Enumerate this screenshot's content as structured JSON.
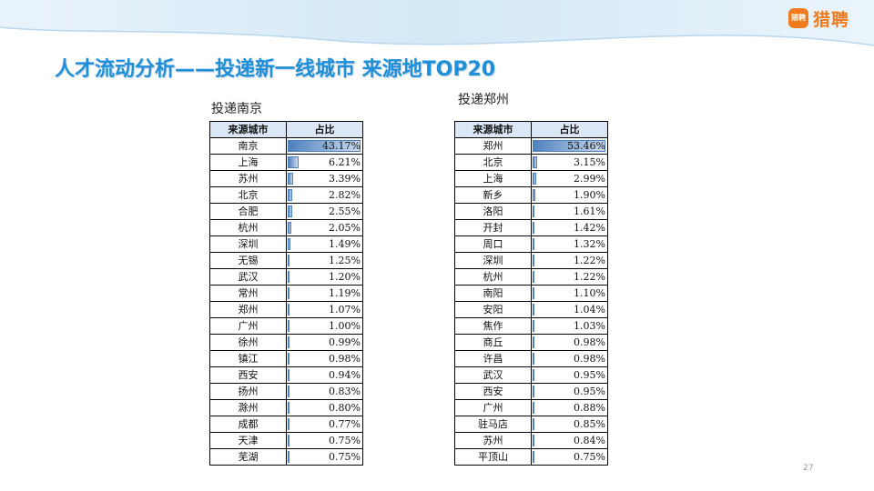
{
  "brand": {
    "badge": "猎聘",
    "name": "猎聘"
  },
  "title": "人才流动分析——投递新一线城市 来源地TOP20",
  "colors": {
    "title": "#1e8fd8",
    "brand": "#f07a1e",
    "bar": "#4f81bd",
    "header_bg": "#dbe7f4"
  },
  "tables": [
    {
      "caption": "投递南京",
      "headers": [
        "来源城市",
        "占比"
      ],
      "rows": [
        {
          "city": "南京",
          "pct": "43.17%",
          "value": 43.17
        },
        {
          "city": "上海",
          "pct": "6.21%",
          "value": 6.21
        },
        {
          "city": "苏州",
          "pct": "3.39%",
          "value": 3.39
        },
        {
          "city": "北京",
          "pct": "2.82%",
          "value": 2.82
        },
        {
          "city": "合肥",
          "pct": "2.55%",
          "value": 2.55
        },
        {
          "city": "杭州",
          "pct": "2.05%",
          "value": 2.05
        },
        {
          "city": "深圳",
          "pct": "1.49%",
          "value": 1.49
        },
        {
          "city": "无锡",
          "pct": "1.25%",
          "value": 1.25
        },
        {
          "city": "武汉",
          "pct": "1.20%",
          "value": 1.2
        },
        {
          "city": "常州",
          "pct": "1.19%",
          "value": 1.19
        },
        {
          "city": "郑州",
          "pct": "1.07%",
          "value": 1.07
        },
        {
          "city": "广州",
          "pct": "1.00%",
          "value": 1.0
        },
        {
          "city": "徐州",
          "pct": "0.99%",
          "value": 0.99
        },
        {
          "city": "镇江",
          "pct": "0.98%",
          "value": 0.98
        },
        {
          "city": "西安",
          "pct": "0.94%",
          "value": 0.94
        },
        {
          "city": "扬州",
          "pct": "0.83%",
          "value": 0.83
        },
        {
          "city": "滁州",
          "pct": "0.80%",
          "value": 0.8
        },
        {
          "city": "成都",
          "pct": "0.77%",
          "value": 0.77
        },
        {
          "city": "天津",
          "pct": "0.75%",
          "value": 0.75
        },
        {
          "city": "芜湖",
          "pct": "0.75%",
          "value": 0.75
        }
      ]
    },
    {
      "caption": "投递郑州",
      "headers": [
        "来源城市",
        "占比"
      ],
      "rows": [
        {
          "city": "郑州",
          "pct": "53.46%",
          "value": 53.46
        },
        {
          "city": "北京",
          "pct": "3.15%",
          "value": 3.15
        },
        {
          "city": "上海",
          "pct": "2.99%",
          "value": 2.99
        },
        {
          "city": "新乡",
          "pct": "1.90%",
          "value": 1.9
        },
        {
          "city": "洛阳",
          "pct": "1.61%",
          "value": 1.61
        },
        {
          "city": "开封",
          "pct": "1.42%",
          "value": 1.42
        },
        {
          "city": "周口",
          "pct": "1.32%",
          "value": 1.32
        },
        {
          "city": "深圳",
          "pct": "1.22%",
          "value": 1.22
        },
        {
          "city": "杭州",
          "pct": "1.22%",
          "value": 1.22
        },
        {
          "city": "南阳",
          "pct": "1.10%",
          "value": 1.1
        },
        {
          "city": "安阳",
          "pct": "1.04%",
          "value": 1.04
        },
        {
          "city": "焦作",
          "pct": "1.03%",
          "value": 1.03
        },
        {
          "city": "商丘",
          "pct": "0.98%",
          "value": 0.98
        },
        {
          "city": "许昌",
          "pct": "0.98%",
          "value": 0.98
        },
        {
          "city": "武汉",
          "pct": "0.95%",
          "value": 0.95
        },
        {
          "city": "西安",
          "pct": "0.95%",
          "value": 0.95
        },
        {
          "city": "广州",
          "pct": "0.88%",
          "value": 0.88
        },
        {
          "city": "驻马店",
          "pct": "0.85%",
          "value": 0.85
        },
        {
          "city": "苏州",
          "pct": "0.84%",
          "value": 0.84
        },
        {
          "city": "平顶山",
          "pct": "0.75%",
          "value": 0.75
        }
      ]
    }
  ],
  "page_number": "27"
}
